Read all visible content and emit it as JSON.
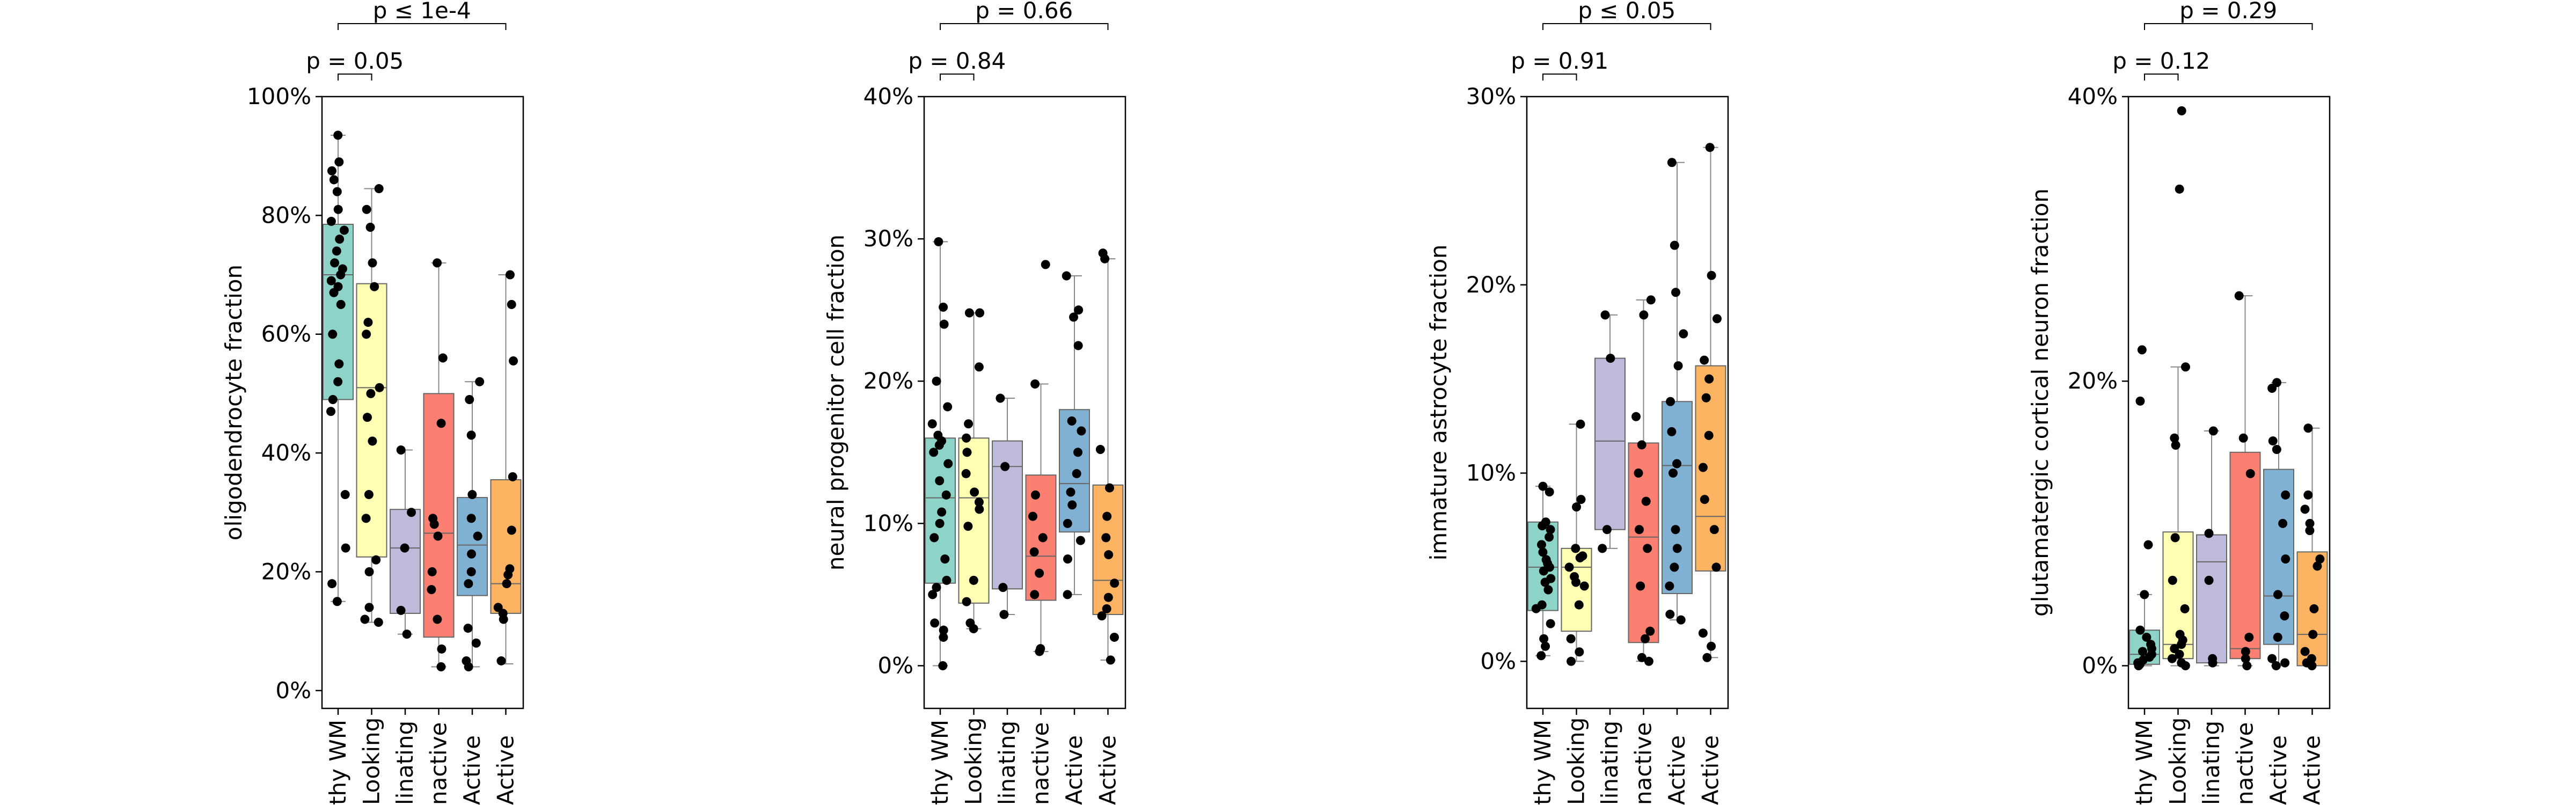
{
  "palette": [
    "#8dd3c7",
    "#ffffb3",
    "#bebada",
    "#fb8072",
    "#80b1d3",
    "#fdb462"
  ],
  "chart_data": [
    {
      "type": "box",
      "ylabel": "oligodendrocyte fraction",
      "ylim": [
        -0.03,
        1.0
      ],
      "yticks": [
        0,
        0.2,
        0.4,
        0.6,
        0.8,
        1.0
      ],
      "ytick_labels": [
        "0%",
        "20%",
        "40%",
        "60%",
        "80%",
        "100%"
      ],
      "categories": [
        "Healthy WM",
        "Normal Appearing WM / Normal Looking",
        "Remyelinating",
        "Chronic Inactive",
        "Chronic Active",
        "Active / Chronic Active"
      ],
      "visible_xtick_labels": [
        "thy WM",
        "Looking",
        "linating",
        "nactive",
        "Active",
        "Active"
      ],
      "boxes": [
        {
          "whislo": 0.15,
          "q1": 0.49,
          "med": 0.7,
          "q3": 0.785,
          "whishi": 0.935
        },
        {
          "whislo": 0.115,
          "q1": 0.225,
          "med": 0.51,
          "q3": 0.685,
          "whishi": 0.845
        },
        {
          "whislo": 0.095,
          "q1": 0.13,
          "med": 0.24,
          "q3": 0.305,
          "whishi": 0.405
        },
        {
          "whislo": 0.04,
          "q1": 0.09,
          "med": 0.265,
          "q3": 0.5,
          "whishi": 0.72
        },
        {
          "whislo": 0.04,
          "q1": 0.16,
          "med": 0.245,
          "q3": 0.325,
          "whishi": 0.52
        },
        {
          "whislo": 0.045,
          "q1": 0.13,
          "med": 0.18,
          "q3": 0.355,
          "whishi": 0.7
        }
      ],
      "points": [
        [
          0.935,
          0.89,
          0.875,
          0.86,
          0.84,
          0.81,
          0.79,
          0.775,
          0.76,
          0.74,
          0.72,
          0.71,
          0.7,
          0.69,
          0.68,
          0.67,
          0.65,
          0.6,
          0.55,
          0.52,
          0.49,
          0.47,
          0.33,
          0.24,
          0.18,
          0.15
        ],
        [
          0.845,
          0.81,
          0.78,
          0.72,
          0.68,
          0.62,
          0.6,
          0.51,
          0.5,
          0.46,
          0.42,
          0.33,
          0.29,
          0.22,
          0.2,
          0.14,
          0.12,
          0.115
        ],
        [
          0.405,
          0.3,
          0.24,
          0.135,
          0.095
        ],
        [
          0.72,
          0.56,
          0.45,
          0.29,
          0.28,
          0.26,
          0.2,
          0.17,
          0.12,
          0.07,
          0.04
        ],
        [
          0.52,
          0.49,
          0.43,
          0.33,
          0.29,
          0.26,
          0.23,
          0.2,
          0.18,
          0.105,
          0.08,
          0.05,
          0.04
        ],
        [
          0.7,
          0.65,
          0.555,
          0.36,
          0.27,
          0.205,
          0.195,
          0.18,
          0.14,
          0.13,
          0.12,
          0.05
        ]
      ],
      "annotations": [
        {
          "text": "p ≤ 1e-4",
          "from": 0,
          "to": 5
        },
        {
          "text": "p = 0.05",
          "from": 0,
          "to": 1
        }
      ]
    },
    {
      "type": "box",
      "ylabel": "neural progenitor cell fraction",
      "ylim": [
        -0.03,
        0.4
      ],
      "yticks": [
        0,
        0.1,
        0.2,
        0.3,
        0.4
      ],
      "ytick_labels": [
        "0%",
        "10%",
        "20%",
        "30%",
        "40%"
      ],
      "categories": [
        "Healthy WM",
        "Normal Appearing WM / Normal Looking",
        "Remyelinating",
        "Chronic Inactive",
        "Chronic Active",
        "Active / Chronic Active"
      ],
      "visible_xtick_labels": [
        "thy WM",
        "Looking",
        "linating",
        "nactive",
        "Active",
        "Active"
      ],
      "boxes": [
        {
          "whislo": 0.0,
          "q1": 0.058,
          "med": 0.118,
          "q3": 0.16,
          "whishi": 0.298
        },
        {
          "whislo": 0.026,
          "q1": 0.044,
          "med": 0.118,
          "q3": 0.16,
          "whishi": 0.248
        },
        {
          "whislo": 0.036,
          "q1": 0.054,
          "med": 0.14,
          "q3": 0.158,
          "whishi": 0.188
        },
        {
          "whislo": 0.01,
          "q1": 0.046,
          "med": 0.077,
          "q3": 0.134,
          "whishi": 0.198
        },
        {
          "whislo": 0.05,
          "q1": 0.094,
          "med": 0.128,
          "q3": 0.18,
          "whishi": 0.274
        },
        {
          "whislo": 0.004,
          "q1": 0.036,
          "med": 0.06,
          "q3": 0.127,
          "whishi": 0.286
        }
      ],
      "points": [
        [
          0.298,
          0.252,
          0.24,
          0.2,
          0.182,
          0.17,
          0.162,
          0.158,
          0.155,
          0.15,
          0.142,
          0.13,
          0.12,
          0.108,
          0.1,
          0.09,
          0.075,
          0.06,
          0.055,
          0.05,
          0.03,
          0.025,
          0.02,
          0.0
        ],
        [
          0.248,
          0.248,
          0.21,
          0.17,
          0.16,
          0.15,
          0.135,
          0.122,
          0.115,
          0.11,
          0.098,
          0.06,
          0.045,
          0.03,
          0.026
        ],
        [
          0.188,
          0.14,
          0.055,
          0.036
        ],
        [
          0.282,
          0.198,
          0.12,
          0.105,
          0.09,
          0.08,
          0.065,
          0.05,
          0.012,
          0.01
        ],
        [
          0.274,
          0.25,
          0.245,
          0.225,
          0.172,
          0.165,
          0.15,
          0.135,
          0.122,
          0.113,
          0.1,
          0.088,
          0.075,
          0.05
        ],
        [
          0.29,
          0.286,
          0.152,
          0.125,
          0.105,
          0.09,
          0.078,
          0.058,
          0.048,
          0.04,
          0.035,
          0.02,
          0.004
        ]
      ],
      "annotations": [
        {
          "text": "p = 0.66",
          "from": 0,
          "to": 5
        },
        {
          "text": "p = 0.84",
          "from": 0,
          "to": 1
        }
      ]
    },
    {
      "type": "box",
      "ylabel": "immature astrocyte fraction",
      "ylim": [
        -0.025,
        0.3
      ],
      "yticks": [
        0,
        0.1,
        0.2,
        0.3
      ],
      "ytick_labels": [
        "0%",
        "10%",
        "20%",
        "30%"
      ],
      "categories": [
        "Healthy WM",
        "Normal Appearing WM / Normal Looking",
        "Remyelinating",
        "Chronic Inactive",
        "Chronic Active",
        "Active / Chronic Active"
      ],
      "visible_xtick_labels": [
        "thy WM",
        "Looking",
        "linating",
        "nactive",
        "Active",
        "Active"
      ],
      "boxes": [
        {
          "whislo": 0.003,
          "q1": 0.027,
          "med": 0.05,
          "q3": 0.074,
          "whishi": 0.093
        },
        {
          "whislo": 0.0,
          "q1": 0.016,
          "med": 0.05,
          "q3": 0.06,
          "whishi": 0.126
        },
        {
          "whislo": 0.06,
          "q1": 0.07,
          "med": 0.117,
          "q3": 0.161,
          "whishi": 0.184
        },
        {
          "whislo": 0.0,
          "q1": 0.01,
          "med": 0.066,
          "q3": 0.116,
          "whishi": 0.192
        },
        {
          "whislo": 0.022,
          "q1": 0.036,
          "med": 0.104,
          "q3": 0.138,
          "whishi": 0.265
        },
        {
          "whislo": 0.002,
          "q1": 0.048,
          "med": 0.077,
          "q3": 0.157,
          "whishi": 0.273
        }
      ],
      "points": [
        [
          0.093,
          0.09,
          0.074,
          0.072,
          0.07,
          0.066,
          0.062,
          0.058,
          0.054,
          0.052,
          0.05,
          0.048,
          0.044,
          0.042,
          0.038,
          0.03,
          0.028,
          0.02,
          0.012,
          0.008,
          0.003
        ],
        [
          0.126,
          0.086,
          0.082,
          0.06,
          0.056,
          0.055,
          0.05,
          0.045,
          0.042,
          0.04,
          0.03,
          0.012,
          0.005,
          0.0
        ],
        [
          0.184,
          0.161,
          0.07,
          0.06
        ],
        [
          0.192,
          0.184,
          0.13,
          0.115,
          0.1,
          0.085,
          0.07,
          0.06,
          0.04,
          0.016,
          0.012,
          0.002,
          0.0
        ],
        [
          0.265,
          0.221,
          0.196,
          0.174,
          0.157,
          0.138,
          0.122,
          0.105,
          0.1,
          0.07,
          0.06,
          0.05,
          0.04,
          0.025,
          0.022
        ],
        [
          0.273,
          0.205,
          0.182,
          0.16,
          0.15,
          0.14,
          0.12,
          0.103,
          0.086,
          0.07,
          0.05,
          0.015,
          0.008,
          0.002
        ]
      ],
      "annotations": [
        {
          "text": "p ≤ 0.05",
          "from": 0,
          "to": 5
        },
        {
          "text": "p = 0.91",
          "from": 0,
          "to": 1
        }
      ]
    },
    {
      "type": "box",
      "ylabel": "glutamatergic cortical neuron fraction",
      "ylim": [
        -0.03,
        0.4
      ],
      "yticks": [
        0,
        0.2,
        0.4
      ],
      "ytick_labels": [
        "0%",
        "20%",
        "40%"
      ],
      "categories": [
        "Healthy WM",
        "Normal Appearing WM / Normal Looking",
        "Remyelinating",
        "Chronic Inactive",
        "Chronic Active",
        "Active / Chronic Active"
      ],
      "visible_xtick_labels": [
        "thy WM",
        "Looking",
        "linating",
        "nactive",
        "Active",
        "Active"
      ],
      "boxes": [
        {
          "whislo": 0.0,
          "q1": 0.001,
          "med": 0.008,
          "q3": 0.025,
          "whishi": 0.05
        },
        {
          "whislo": 0.0,
          "q1": 0.005,
          "med": 0.015,
          "q3": 0.094,
          "whishi": 0.21
        },
        {
          "whislo": 0.0,
          "q1": 0.002,
          "med": 0.073,
          "q3": 0.092,
          "whishi": 0.165
        },
        {
          "whislo": 0.0,
          "q1": 0.005,
          "med": 0.012,
          "q3": 0.15,
          "whishi": 0.26
        },
        {
          "whislo": 0.0,
          "q1": 0.015,
          "med": 0.049,
          "q3": 0.138,
          "whishi": 0.199
        },
        {
          "whislo": 0.0,
          "q1": 0.0,
          "med": 0.022,
          "q3": 0.08,
          "whishi": 0.167
        }
      ],
      "points": [
        [
          0.222,
          0.186,
          0.085,
          0.05,
          0.025,
          0.02,
          0.015,
          0.012,
          0.01,
          0.008,
          0.006,
          0.004,
          0.002,
          0.001,
          0.0
        ],
        [
          0.39,
          0.335,
          0.21,
          0.16,
          0.155,
          0.09,
          0.06,
          0.04,
          0.022,
          0.018,
          0.015,
          0.012,
          0.008,
          0.005,
          0.002,
          0.0
        ],
        [
          0.165,
          0.093,
          0.06,
          0.005,
          0.002
        ],
        [
          0.26,
          0.16,
          0.135,
          0.02,
          0.01,
          0.005,
          0.0
        ],
        [
          0.199,
          0.195,
          0.158,
          0.152,
          0.12,
          0.1,
          0.075,
          0.05,
          0.035,
          0.02,
          0.005,
          0.002,
          0.0
        ],
        [
          0.167,
          0.12,
          0.11,
          0.1,
          0.095,
          0.075,
          0.07,
          0.04,
          0.022,
          0.01,
          0.005,
          0.002,
          0.0
        ]
      ],
      "annotations": [
        {
          "text": "p = 0.29",
          "from": 0,
          "to": 5
        },
        {
          "text": "p = 0.12",
          "from": 0,
          "to": 1
        }
      ]
    }
  ]
}
